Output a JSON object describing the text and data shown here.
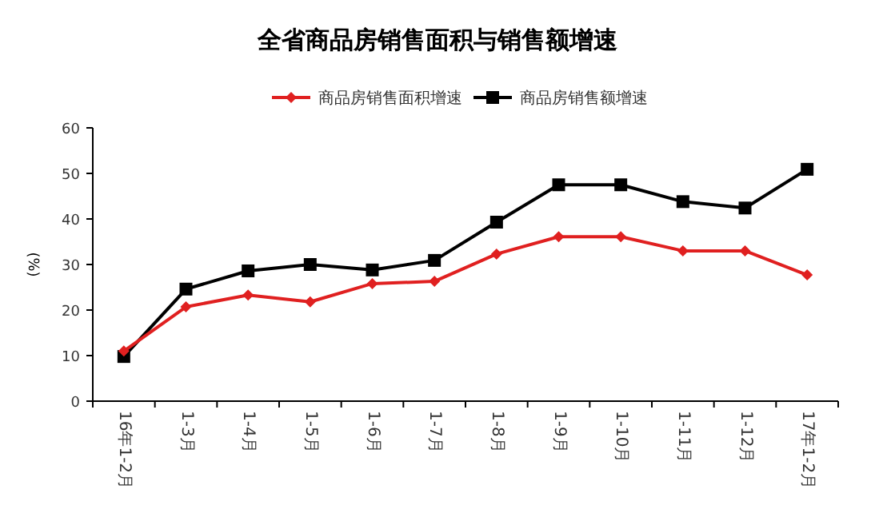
{
  "chart_data": {
    "type": "line",
    "title": "全省商品房销售面积与销售额增速",
    "ylabel": "(%)",
    "categories": [
      "16年1-2月",
      "1-3月",
      "1-4月",
      "1-5月",
      "1-6月",
      "1-7月",
      "1-8月",
      "1-9月",
      "1-10月",
      "1-11月",
      "1-12月",
      "17年1-2月"
    ],
    "series": [
      {
        "name": "商品房销售面积增速",
        "color": "#e02020",
        "marker": "diamond",
        "values": [
          11,
          20.7,
          23.3,
          21.8,
          25.8,
          26.3,
          32.3,
          36.1,
          36.1,
          33,
          33,
          27.7
        ]
      },
      {
        "name": "商品房销售额增速",
        "color": "#000000",
        "marker": "square",
        "values": [
          9.8,
          24.6,
          28.6,
          30,
          28.8,
          30.9,
          39.3,
          47.5,
          47.5,
          43.8,
          42.4,
          50.9
        ]
      }
    ],
    "ylim": [
      0,
      60
    ],
    "yticks": [
      0,
      10,
      20,
      30,
      40,
      50,
      60
    ],
    "legend": "top",
    "grid": false
  }
}
